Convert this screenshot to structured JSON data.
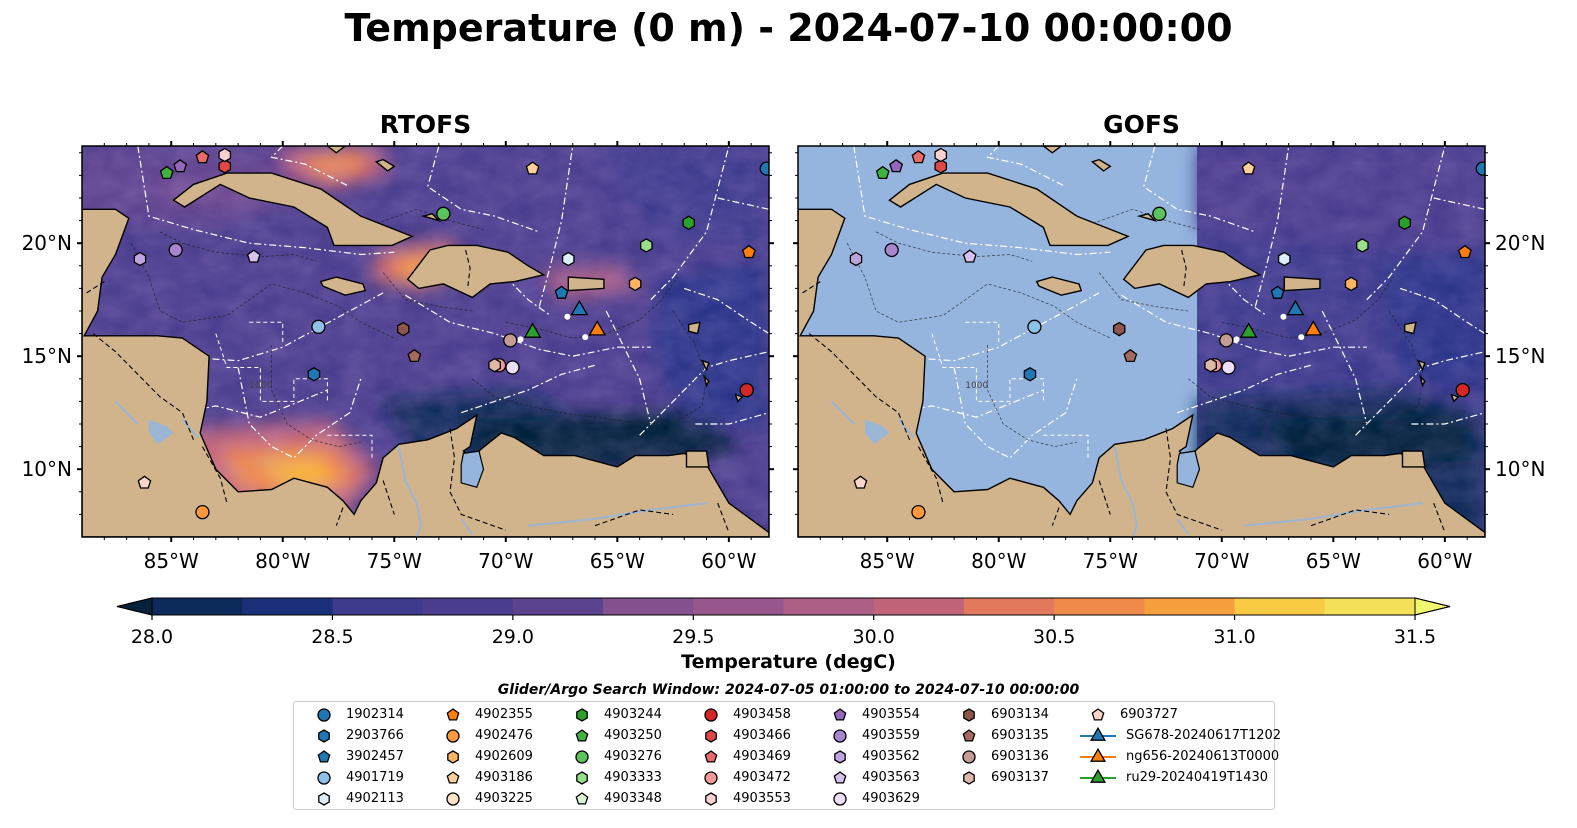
{
  "title": "Temperature (0 m) - 2024-07-10 00:00:00",
  "panels": [
    {
      "title": "RTOFS",
      "mode": "full"
    },
    {
      "title": "GOFS",
      "mode": "partial"
    }
  ],
  "colors": {
    "land": "#d2b48c",
    "no_data": "#95b5df",
    "rivers": "#9bb6d4",
    "colormap": [
      "#05223a",
      "#0c2a5a",
      "#1a2f7a",
      "#2c3689",
      "#3e3b8d",
      "#4c3e8e",
      "#5c438f",
      "#6f4a8f",
      "#84518f",
      "#97578c",
      "#ac5e85",
      "#c1647a",
      "#d36c6c",
      "#e3795c",
      "#f08a4b",
      "#f79f3f",
      "#fab53c",
      "#f9cb44",
      "#f4e15a",
      "#f0f76f"
    ]
  },
  "colorbar": {
    "label": "Temperature (degC)",
    "min": 28.0,
    "max": 31.5,
    "ticks": [
      "28.0",
      "28.5",
      "29.0",
      "29.5",
      "30.0",
      "30.5",
      "31.0",
      "31.5"
    ]
  },
  "map": {
    "lon_range": [
      -89,
      -58.2
    ],
    "lat_range": [
      7,
      24.3
    ],
    "x_ticks": [
      "85°W",
      "80°W",
      "75°W",
      "70°W",
      "65°W",
      "60°W"
    ],
    "y_ticks": [
      "10°N",
      "15°N",
      "20°N"
    ],
    "contour_label": "1000"
  },
  "legend": {
    "title": "Glider/Argo Search Window: 2024-07-05 01:00:00 to 2024-07-10 00:00:00",
    "items": [
      {
        "id": "1902314",
        "color": "#1f77b4",
        "marker": "circle"
      },
      {
        "id": "2903766",
        "color": "#1f77b4",
        "marker": "hexagon"
      },
      {
        "id": "3902457",
        "color": "#1f77b4",
        "marker": "pentagon"
      },
      {
        "id": "4901719",
        "color": "#8ec1e6",
        "marker": "circle"
      },
      {
        "id": "4902113",
        "color": "#dceefa",
        "marker": "hexagon"
      },
      {
        "id": "4902355",
        "color": "#ff7f0e",
        "marker": "pentagon"
      },
      {
        "id": "4902476",
        "color": "#ff9a3c",
        "marker": "circle"
      },
      {
        "id": "4902609",
        "color": "#ffb463",
        "marker": "hexagon"
      },
      {
        "id": "4903186",
        "color": "#ffcf99",
        "marker": "pentagon"
      },
      {
        "id": "4903225",
        "color": "#ffe3c8",
        "marker": "circle"
      },
      {
        "id": "4903244",
        "color": "#2ca02c",
        "marker": "hexagon"
      },
      {
        "id": "4903250",
        "color": "#3fb23f",
        "marker": "pentagon"
      },
      {
        "id": "4903276",
        "color": "#5cc45c",
        "marker": "circle"
      },
      {
        "id": "4903333",
        "color": "#98df8a",
        "marker": "hexagon"
      },
      {
        "id": "4903348",
        "color": "#dcf5d4",
        "marker": "pentagon"
      },
      {
        "id": "4903458",
        "color": "#d62728",
        "marker": "circle"
      },
      {
        "id": "4903466",
        "color": "#e04848",
        "marker": "hexagon"
      },
      {
        "id": "4903469",
        "color": "#e86a6a",
        "marker": "pentagon"
      },
      {
        "id": "4903472",
        "color": "#f29a9a",
        "marker": "circle"
      },
      {
        "id": "4903553",
        "color": "#fbd1d1",
        "marker": "hexagon"
      },
      {
        "id": "4903554",
        "color": "#9467bd",
        "marker": "pentagon"
      },
      {
        "id": "4903559",
        "color": "#a985d0",
        "marker": "circle"
      },
      {
        "id": "4903562",
        "color": "#c0a4e0",
        "marker": "hexagon"
      },
      {
        "id": "4903563",
        "color": "#d6c2ee",
        "marker": "pentagon"
      },
      {
        "id": "4903629",
        "color": "#ecdffa",
        "marker": "circle"
      },
      {
        "id": "6903134",
        "color": "#8c564b",
        "marker": "hexagon"
      },
      {
        "id": "6903135",
        "color": "#a56a5e",
        "marker": "pentagon"
      },
      {
        "id": "6903136",
        "color": "#c49c94",
        "marker": "circle"
      },
      {
        "id": "6903137",
        "color": "#e0b8a8",
        "marker": "hexagon"
      },
      {
        "id": "6903727",
        "color": "#fbd6c8",
        "marker": "pentagon"
      },
      {
        "id": "SG678-20240617T1202",
        "color": "#1f77b4",
        "marker": "triangle-line"
      },
      {
        "id": "ng656-20240613T0000",
        "color": "#ff7f0e",
        "marker": "triangle-line"
      },
      {
        "id": "ru29-20240419T1430",
        "color": "#2ca02c",
        "marker": "triangle-line"
      }
    ]
  },
  "observations": [
    {
      "id": "1902314",
      "lon": -58.3,
      "lat": 23.3
    },
    {
      "id": "2903766",
      "lon": -78.6,
      "lat": 14.2
    },
    {
      "id": "3902457",
      "lon": -67.5,
      "lat": 17.8
    },
    {
      "id": "4901719",
      "lon": -78.4,
      "lat": 16.3
    },
    {
      "id": "4902113",
      "lon": -67.2,
      "lat": 19.3
    },
    {
      "id": "4902355",
      "lon": -59.1,
      "lat": 19.6
    },
    {
      "id": "4902476",
      "lon": -83.6,
      "lat": 8.1
    },
    {
      "id": "4902609",
      "lon": -64.2,
      "lat": 18.2
    },
    {
      "id": "4903186",
      "lon": -68.8,
      "lat": 23.3
    },
    {
      "id": "4903244",
      "lon": -61.8,
      "lat": 20.9
    },
    {
      "id": "4903250",
      "lon": -85.2,
      "lat": 23.1
    },
    {
      "id": "4903276",
      "lon": -72.8,
      "lat": 21.3
    },
    {
      "id": "4903333",
      "lon": -63.7,
      "lat": 19.9
    },
    {
      "id": "4903458",
      "lon": -59.2,
      "lat": 13.5
    },
    {
      "id": "4903466",
      "lon": -82.6,
      "lat": 23.4
    },
    {
      "id": "4903469",
      "lon": -83.6,
      "lat": 23.8
    },
    {
      "id": "4903472",
      "lon": -70.3,
      "lat": 14.6
    },
    {
      "id": "4903553",
      "lon": -82.6,
      "lat": 23.9
    },
    {
      "id": "4903554",
      "lon": -84.6,
      "lat": 23.4
    },
    {
      "id": "4903559",
      "lon": -84.8,
      "lat": 19.7
    },
    {
      "id": "4903562",
      "lon": -86.4,
      "lat": 19.3
    },
    {
      "id": "4903563",
      "lon": -81.3,
      "lat": 19.4
    },
    {
      "id": "4903629",
      "lon": -69.7,
      "lat": 14.5
    },
    {
      "id": "6903134",
      "lon": -74.6,
      "lat": 16.2
    },
    {
      "id": "6903135",
      "lon": -74.1,
      "lat": 15.0
    },
    {
      "id": "6903136",
      "lon": -69.8,
      "lat": 15.7
    },
    {
      "id": "6903137",
      "lon": -70.5,
      "lat": 14.6
    },
    {
      "id": "6903727",
      "lon": -86.2,
      "lat": 9.4
    }
  ],
  "glider_tracks": [
    {
      "id": "SG678-20240617T1202",
      "lon": -66.7,
      "lat": 17.1
    },
    {
      "id": "ng656-20240613T0000",
      "lon": -65.9,
      "lat": 16.2
    },
    {
      "id": "ru29-20240419T1430",
      "lon": -68.8,
      "lat": 16.1
    }
  ]
}
